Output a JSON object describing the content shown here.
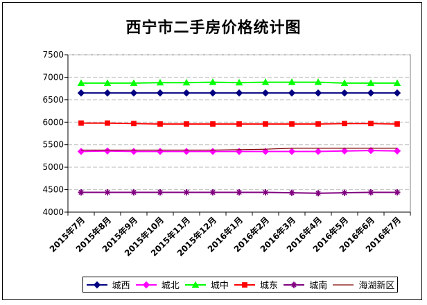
{
  "chart_data": {
    "type": "line",
    "title": "西宁市二手房价格统计图",
    "categories": [
      "2015年7月",
      "2015年8月",
      "2015年9月",
      "2015年10月",
      "2015年11月",
      "2015年12月",
      "2016年1月",
      "2016年2月",
      "2016年3月",
      "2016年4月",
      "2016年5月",
      "2016年6月",
      "2016年7月"
    ],
    "ylim": [
      4000,
      7500
    ],
    "yticks": [
      4000,
      4500,
      5000,
      5500,
      6000,
      6500,
      7000,
      7500
    ],
    "grid": true,
    "legend_position": "bottom",
    "series": [
      {
        "name": "城西",
        "color": "#000080",
        "marker": "diamond",
        "values": [
          6650,
          6650,
          6650,
          6650,
          6650,
          6650,
          6650,
          6650,
          6650,
          6650,
          6650,
          6650,
          6650
        ]
      },
      {
        "name": "城北",
        "color": "#ff00ff",
        "marker": "diamond",
        "values": [
          5350,
          5360,
          5350,
          5350,
          5350,
          5350,
          5350,
          5350,
          5350,
          5350,
          5360,
          5370,
          5360
        ]
      },
      {
        "name": "城中",
        "color": "#00ff00",
        "marker": "triangle",
        "values": [
          6870,
          6870,
          6870,
          6880,
          6880,
          6890,
          6880,
          6890,
          6890,
          6890,
          6870,
          6870,
          6870
        ]
      },
      {
        "name": "城东",
        "color": "#ff0000",
        "marker": "square",
        "values": [
          5980,
          5980,
          5970,
          5960,
          5960,
          5960,
          5960,
          5960,
          5960,
          5960,
          5970,
          5970,
          5960
        ]
      },
      {
        "name": "城南",
        "color": "#800080",
        "marker": "star",
        "values": [
          4440,
          4440,
          4440,
          4440,
          4440,
          4440,
          4440,
          4440,
          4430,
          4420,
          4430,
          4440,
          4440
        ]
      },
      {
        "name": "海湖新区",
        "color": "#800000",
        "marker": "none",
        "values": [
          5380,
          5380,
          5380,
          5380,
          5380,
          5380,
          5390,
          5400,
          5420,
          5420,
          5420,
          5420,
          5420
        ]
      }
    ]
  }
}
